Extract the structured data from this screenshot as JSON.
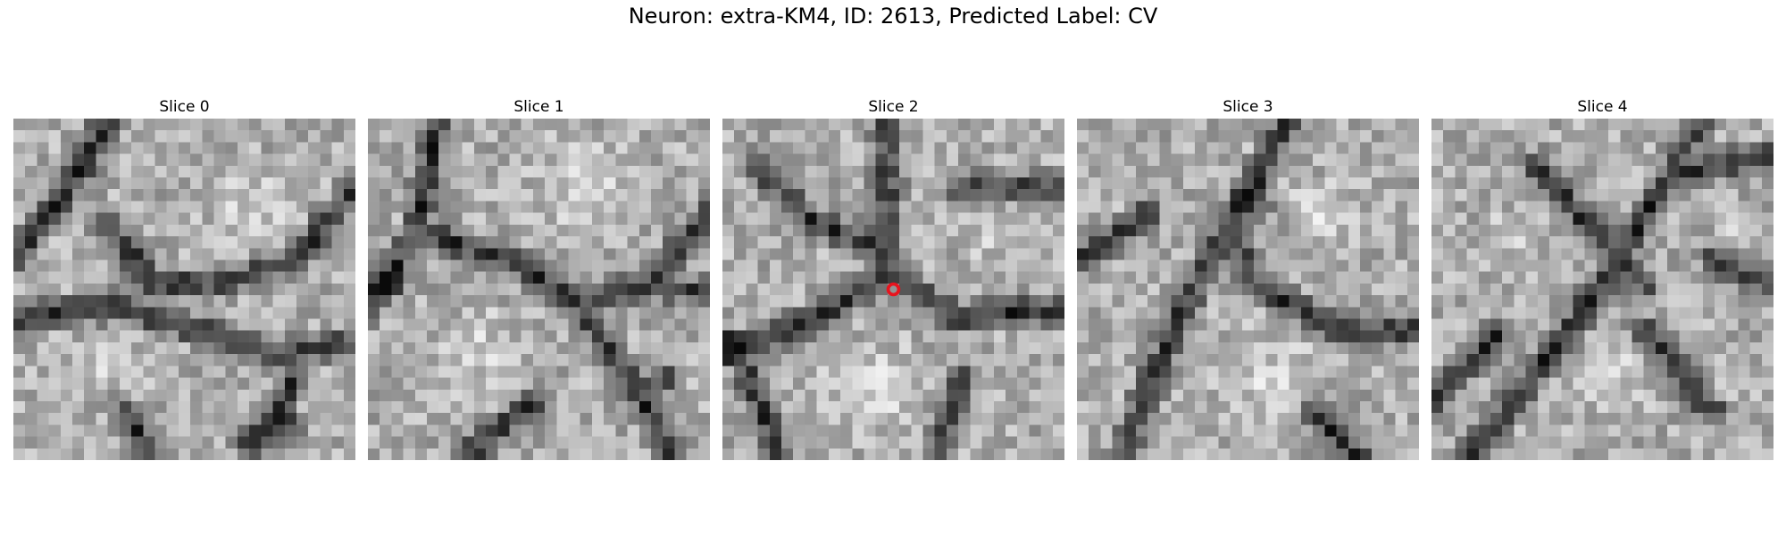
{
  "figure": {
    "title": "Neuron: extra-KM4, ID: 2613, Predicted Label: CV"
  },
  "panels": [
    {
      "title": "Slice 0"
    },
    {
      "title": "Slice 1"
    },
    {
      "title": "Slice 2",
      "marker": true
    },
    {
      "title": "Slice 3"
    },
    {
      "title": "Slice 4"
    }
  ],
  "colors": {
    "marker": "#e8141e",
    "background": "#ffffff"
  }
}
